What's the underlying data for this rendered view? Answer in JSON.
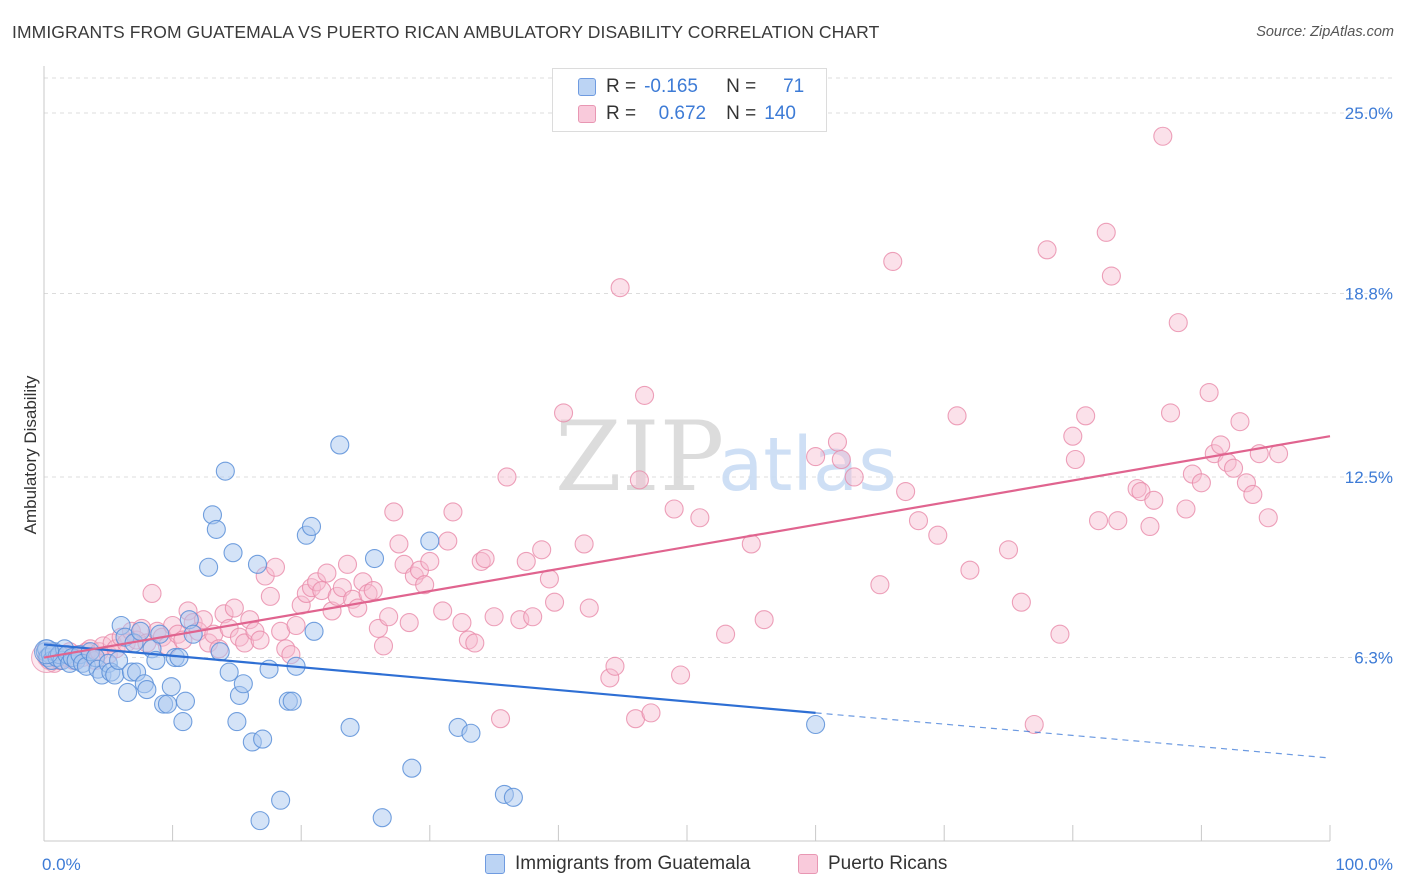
{
  "header": {
    "title": "IMMIGRANTS FROM GUATEMALA VS PUERTO RICAN AMBULATORY DISABILITY CORRELATION CHART",
    "source": "Source: ZipAtlas.com"
  },
  "watermark": {
    "zip": "ZIP",
    "atlas": "atlas"
  },
  "legend_top": [
    {
      "r_label": "R =",
      "r_value": "-0.165",
      "n_label": "N =",
      "n_value": "71"
    },
    {
      "r_label": "R =",
      "r_value": "0.672",
      "n_label": "N =",
      "n_value": "140"
    }
  ],
  "colors": {
    "blue_fill": "#a9c8f0",
    "blue_stroke": "#5a8fd8",
    "blue_line": "#2e6fd4",
    "pink_fill": "#f6bcd0",
    "pink_stroke": "#e889a9",
    "pink_line": "#e0648f",
    "grid": "#dcdcdc",
    "tick_text": "#3d7bd6"
  },
  "chart_data": {
    "type": "scatter",
    "title": "IMMIGRANTS FROM GUATEMALA VS PUERTO RICAN AMBULATORY DISABILITY CORRELATION CHART",
    "xlabel": "",
    "ylabel": "Ambulatory Disability",
    "xlim": [
      0,
      100
    ],
    "ylim": [
      0,
      26.2
    ],
    "x_tick_labels": [
      "0.0%",
      "100.0%"
    ],
    "y_ticks": [
      6.3,
      12.5,
      18.8,
      25.0
    ],
    "y_tick_labels": [
      "6.3%",
      "12.5%",
      "18.8%",
      "25.0%"
    ],
    "grid": "horizontal dashed",
    "legend_position": "bottom-center",
    "series": [
      {
        "name": "Immigrants from Guatemala",
        "color": "#a9c8f0",
        "r": -0.165,
        "n": 71,
        "trend": {
          "x0": 0,
          "y0": 6.75,
          "x1": 60,
          "y1": 4.4,
          "dash_to_x": 100,
          "dash_to_y": 2.85
        },
        "points": [
          [
            0.1,
            6.5
          ],
          [
            0.2,
            6.6
          ],
          [
            0.3,
            6.3
          ],
          [
            0.5,
            6.4
          ],
          [
            0.6,
            6.2
          ],
          [
            0.8,
            6.5
          ],
          [
            1.0,
            6.3
          ],
          [
            1.2,
            6.4
          ],
          [
            1.4,
            6.2
          ],
          [
            1.6,
            6.6
          ],
          [
            1.8,
            6.4
          ],
          [
            2.0,
            6.1
          ],
          [
            2.2,
            6.3
          ],
          [
            2.5,
            6.2
          ],
          [
            2.8,
            6.4
          ],
          [
            3.0,
            6.1
          ],
          [
            3.3,
            6.0
          ],
          [
            3.6,
            6.5
          ],
          [
            4.0,
            6.3
          ],
          [
            4.2,
            5.9
          ],
          [
            4.5,
            5.7
          ],
          [
            5.0,
            6.1
          ],
          [
            5.2,
            5.8
          ],
          [
            5.5,
            5.7
          ],
          [
            5.8,
            6.2
          ],
          [
            6.0,
            7.4
          ],
          [
            6.3,
            7.0
          ],
          [
            6.5,
            5.1
          ],
          [
            6.8,
            5.8
          ],
          [
            7.0,
            6.8
          ],
          [
            7.2,
            5.8
          ],
          [
            7.5,
            7.2
          ],
          [
            7.8,
            5.4
          ],
          [
            8.0,
            5.2
          ],
          [
            8.4,
            6.6
          ],
          [
            8.7,
            6.2
          ],
          [
            9.0,
            7.1
          ],
          [
            9.3,
            4.7
          ],
          [
            9.6,
            4.7
          ],
          [
            9.9,
            5.3
          ],
          [
            10.2,
            6.3
          ],
          [
            10.5,
            6.3
          ],
          [
            10.8,
            4.1
          ],
          [
            11.0,
            4.8
          ],
          [
            11.3,
            7.6
          ],
          [
            11.6,
            7.1
          ],
          [
            12.8,
            9.4
          ],
          [
            13.1,
            11.2
          ],
          [
            13.4,
            10.7
          ],
          [
            13.7,
            6.5
          ],
          [
            14.1,
            12.7
          ],
          [
            14.4,
            5.8
          ],
          [
            14.7,
            9.9
          ],
          [
            15.0,
            4.1
          ],
          [
            15.2,
            5.0
          ],
          [
            15.5,
            5.4
          ],
          [
            16.2,
            3.4
          ],
          [
            16.6,
            9.5
          ],
          [
            17.0,
            3.5
          ],
          [
            17.5,
            5.9
          ],
          [
            18.4,
            1.4
          ],
          [
            19.0,
            4.8
          ],
          [
            19.3,
            4.8
          ],
          [
            19.6,
            6.0
          ],
          [
            20.4,
            10.5
          ],
          [
            20.8,
            10.8
          ],
          [
            21.0,
            7.2
          ],
          [
            23.0,
            13.6
          ],
          [
            23.8,
            3.9
          ],
          [
            25.7,
            9.7
          ],
          [
            26.3,
            0.8
          ],
          [
            28.6,
            2.5
          ],
          [
            30.0,
            10.3
          ],
          [
            32.2,
            3.9
          ],
          [
            33.2,
            3.7
          ],
          [
            35.8,
            1.6
          ],
          [
            36.5,
            1.5
          ],
          [
            60.0,
            4.0
          ],
          [
            16.8,
            0.7
          ]
        ]
      },
      {
        "name": "Puerto Ricans",
        "color": "#f6bcd0",
        "r": 0.672,
        "n": 140,
        "trend": {
          "x0": 0,
          "y0": 6.3,
          "x1": 100,
          "y1": 13.9
        },
        "points": [
          [
            0.2,
            6.3
          ],
          [
            0.4,
            6.2
          ],
          [
            0.6,
            6.4
          ],
          [
            0.8,
            6.1
          ],
          [
            1.0,
            6.3
          ],
          [
            1.2,
            6.2
          ],
          [
            1.5,
            6.4
          ],
          [
            1.8,
            6.3
          ],
          [
            2.0,
            6.5
          ],
          [
            2.3,
            6.2
          ],
          [
            2.6,
            6.4
          ],
          [
            3.0,
            6.3
          ],
          [
            3.3,
            6.5
          ],
          [
            3.6,
            6.6
          ],
          [
            4.0,
            6.2
          ],
          [
            4.3,
            6.5
          ],
          [
            4.6,
            6.7
          ],
          [
            5.0,
            6.4
          ],
          [
            5.3,
            6.8
          ],
          [
            5.6,
            6.6
          ],
          [
            6.0,
            7.0
          ],
          [
            6.4,
            6.8
          ],
          [
            6.8,
            7.2
          ],
          [
            7.2,
            6.9
          ],
          [
            7.6,
            7.3
          ],
          [
            8.0,
            6.8
          ],
          [
            8.4,
            8.5
          ],
          [
            8.8,
            7.2
          ],
          [
            9.2,
            7.0
          ],
          [
            9.6,
            6.7
          ],
          [
            10.0,
            7.4
          ],
          [
            10.4,
            7.1
          ],
          [
            10.8,
            6.9
          ],
          [
            11.2,
            7.9
          ],
          [
            11.6,
            7.5
          ],
          [
            12.0,
            7.2
          ],
          [
            12.4,
            7.6
          ],
          [
            12.8,
            6.8
          ],
          [
            13.2,
            7.1
          ],
          [
            13.6,
            6.6
          ],
          [
            14.0,
            7.8
          ],
          [
            14.4,
            7.3
          ],
          [
            14.8,
            8.0
          ],
          [
            15.2,
            7.0
          ],
          [
            15.6,
            6.8
          ],
          [
            16.0,
            7.6
          ],
          [
            16.4,
            7.2
          ],
          [
            16.8,
            6.9
          ],
          [
            17.2,
            9.1
          ],
          [
            17.6,
            8.4
          ],
          [
            18.0,
            9.4
          ],
          [
            18.4,
            7.2
          ],
          [
            18.8,
            6.6
          ],
          [
            19.2,
            6.4
          ],
          [
            19.6,
            7.4
          ],
          [
            20.0,
            8.1
          ],
          [
            20.4,
            8.5
          ],
          [
            20.8,
            8.7
          ],
          [
            21.2,
            8.9
          ],
          [
            21.6,
            8.6
          ],
          [
            22.0,
            9.2
          ],
          [
            22.4,
            7.9
          ],
          [
            22.8,
            8.4
          ],
          [
            23.2,
            8.7
          ],
          [
            23.6,
            9.5
          ],
          [
            24.0,
            8.3
          ],
          [
            24.4,
            8.0
          ],
          [
            24.8,
            8.9
          ],
          [
            25.2,
            8.5
          ],
          [
            25.6,
            8.6
          ],
          [
            26.0,
            7.3
          ],
          [
            26.4,
            6.7
          ],
          [
            26.8,
            7.7
          ],
          [
            27.2,
            11.3
          ],
          [
            27.6,
            10.2
          ],
          [
            28.0,
            9.5
          ],
          [
            28.4,
            7.5
          ],
          [
            28.8,
            9.1
          ],
          [
            29.2,
            9.3
          ],
          [
            29.6,
            8.8
          ],
          [
            30.0,
            9.6
          ],
          [
            31.0,
            7.9
          ],
          [
            31.4,
            10.3
          ],
          [
            31.8,
            11.3
          ],
          [
            32.5,
            7.5
          ],
          [
            33.0,
            6.9
          ],
          [
            33.5,
            6.8
          ],
          [
            34.0,
            9.6
          ],
          [
            34.3,
            9.7
          ],
          [
            35.0,
            7.7
          ],
          [
            35.5,
            4.2
          ],
          [
            36.0,
            12.5
          ],
          [
            37.0,
            7.6
          ],
          [
            37.5,
            9.6
          ],
          [
            38.0,
            7.7
          ],
          [
            38.7,
            10.0
          ],
          [
            39.3,
            9.0
          ],
          [
            39.7,
            8.2
          ],
          [
            40.4,
            14.7
          ],
          [
            42.0,
            10.2
          ],
          [
            42.4,
            8.0
          ],
          [
            44.0,
            5.6
          ],
          [
            44.4,
            6.0
          ],
          [
            44.8,
            19.0
          ],
          [
            46.0,
            4.2
          ],
          [
            46.3,
            12.4
          ],
          [
            46.7,
            15.3
          ],
          [
            47.2,
            4.4
          ],
          [
            49.0,
            11.4
          ],
          [
            49.5,
            5.7
          ],
          [
            51.0,
            11.1
          ],
          [
            53.0,
            7.1
          ],
          [
            55.0,
            10.2
          ],
          [
            56.0,
            7.6
          ],
          [
            60.0,
            13.2
          ],
          [
            61.7,
            13.7
          ],
          [
            62.0,
            13.1
          ],
          [
            63.0,
            12.5
          ],
          [
            65.0,
            8.8
          ],
          [
            66.0,
            19.9
          ],
          [
            67.0,
            12.0
          ],
          [
            68.0,
            11.0
          ],
          [
            69.5,
            10.5
          ],
          [
            71.0,
            14.6
          ],
          [
            72.0,
            9.3
          ],
          [
            75.0,
            10.0
          ],
          [
            76.0,
            8.2
          ],
          [
            77.0,
            4.0
          ],
          [
            78.0,
            20.3
          ],
          [
            79.0,
            7.1
          ],
          [
            80.0,
            13.9
          ],
          [
            80.2,
            13.1
          ],
          [
            81.0,
            14.6
          ],
          [
            82.0,
            11.0
          ],
          [
            82.6,
            20.9
          ],
          [
            83.0,
            19.4
          ],
          [
            83.5,
            11.0
          ],
          [
            85.0,
            12.1
          ],
          [
            85.3,
            12.0
          ],
          [
            86.0,
            10.8
          ],
          [
            86.3,
            11.7
          ],
          [
            87.0,
            24.2
          ],
          [
            87.6,
            14.7
          ],
          [
            88.2,
            17.8
          ],
          [
            88.8,
            11.4
          ],
          [
            89.3,
            12.6
          ],
          [
            90.0,
            12.3
          ],
          [
            90.6,
            15.4
          ],
          [
            91.0,
            13.3
          ],
          [
            91.5,
            13.6
          ],
          [
            92.0,
            13.0
          ],
          [
            92.5,
            12.8
          ],
          [
            93.0,
            14.4
          ],
          [
            93.5,
            12.3
          ],
          [
            94.0,
            11.9
          ],
          [
            94.5,
            13.3
          ],
          [
            95.2,
            11.1
          ],
          [
            96.0,
            13.3
          ]
        ]
      }
    ]
  },
  "bottom_legend": [
    {
      "label": "Immigrants from Guatemala"
    },
    {
      "label": "Puerto Ricans"
    }
  ]
}
